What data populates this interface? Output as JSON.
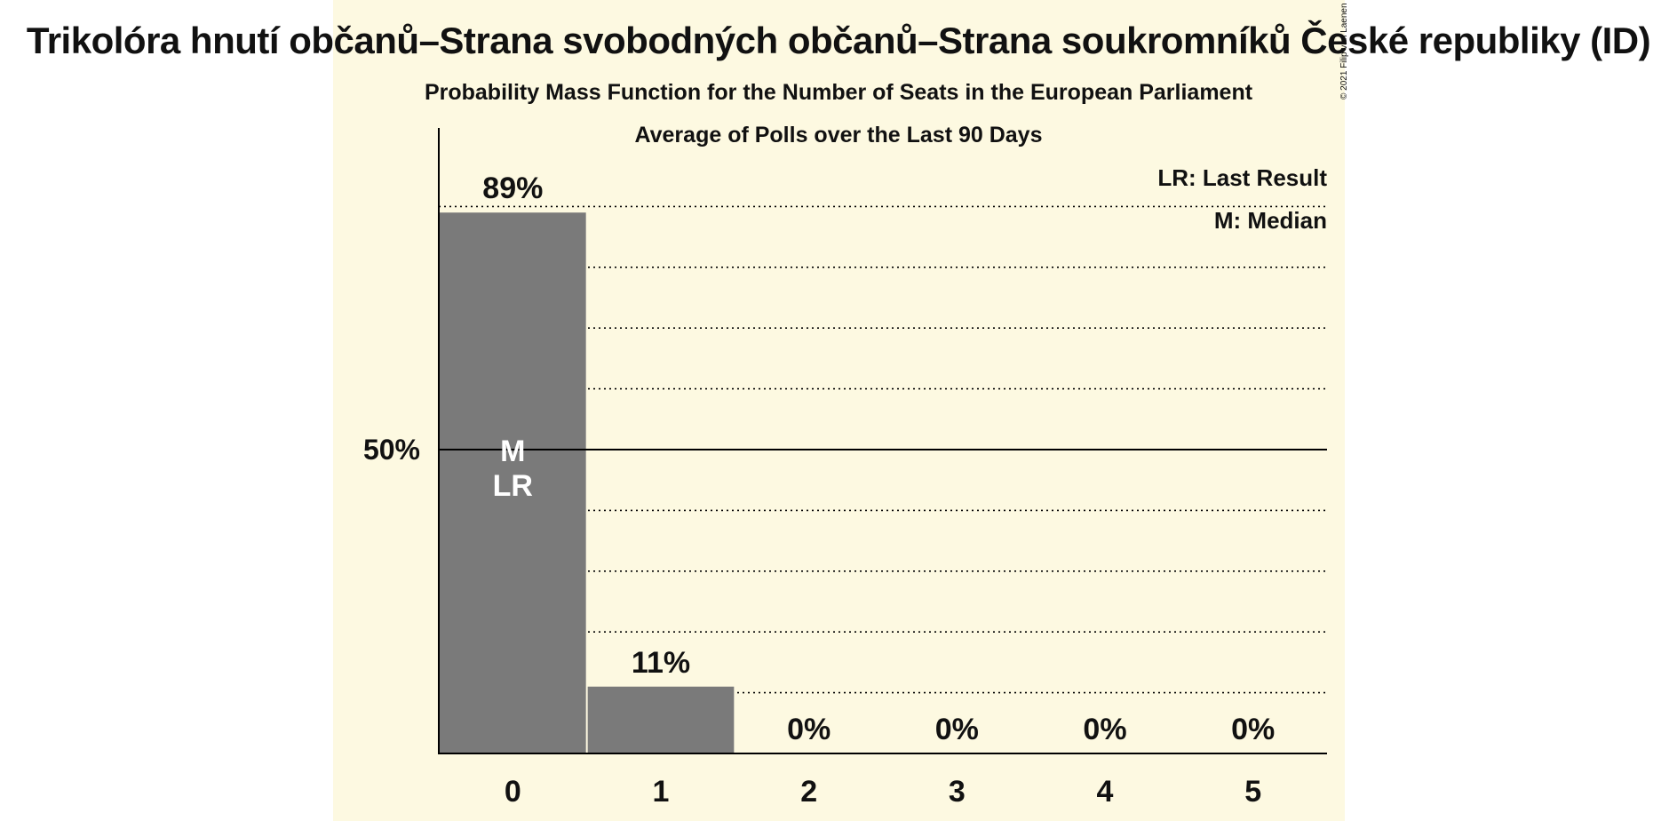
{
  "colors": {
    "panel": "#fdf9e1",
    "bar": "#7a7a7a",
    "axis": "#000000",
    "text": "#111111",
    "bar_text": "#ffffff"
  },
  "header": {
    "title": "Trikolóra hnutí občanů–Strana svobodných občanů–Strana soukromníků České republiky (ID)",
    "subtitle": "Probability Mass Function for the Number of Seats in the European Parliament",
    "subtitle2": "Average of Polls over the Last 90 Days",
    "copyright": "© 2021 Filip van Laenen"
  },
  "chart_data": {
    "type": "bar",
    "categories": [
      "0",
      "1",
      "2",
      "3",
      "4",
      "5"
    ],
    "values": [
      89,
      11,
      0,
      0,
      0,
      0
    ],
    "value_labels": [
      "89%",
      "11%",
      "0%",
      "0%",
      "0%",
      "0%"
    ],
    "ylim": [
      0,
      100
    ],
    "yticks": [
      {
        "value": 50,
        "label": "50%"
      }
    ],
    "gridlines": [
      10,
      20,
      30,
      40,
      60,
      70,
      80,
      90
    ],
    "bar_annotations": [
      {
        "category": "0",
        "lines": [
          "M",
          "LR"
        ]
      }
    ],
    "legend": [
      "LR: Last Result",
      "M: Median"
    ],
    "legend_position": "top-right",
    "grid": true
  }
}
